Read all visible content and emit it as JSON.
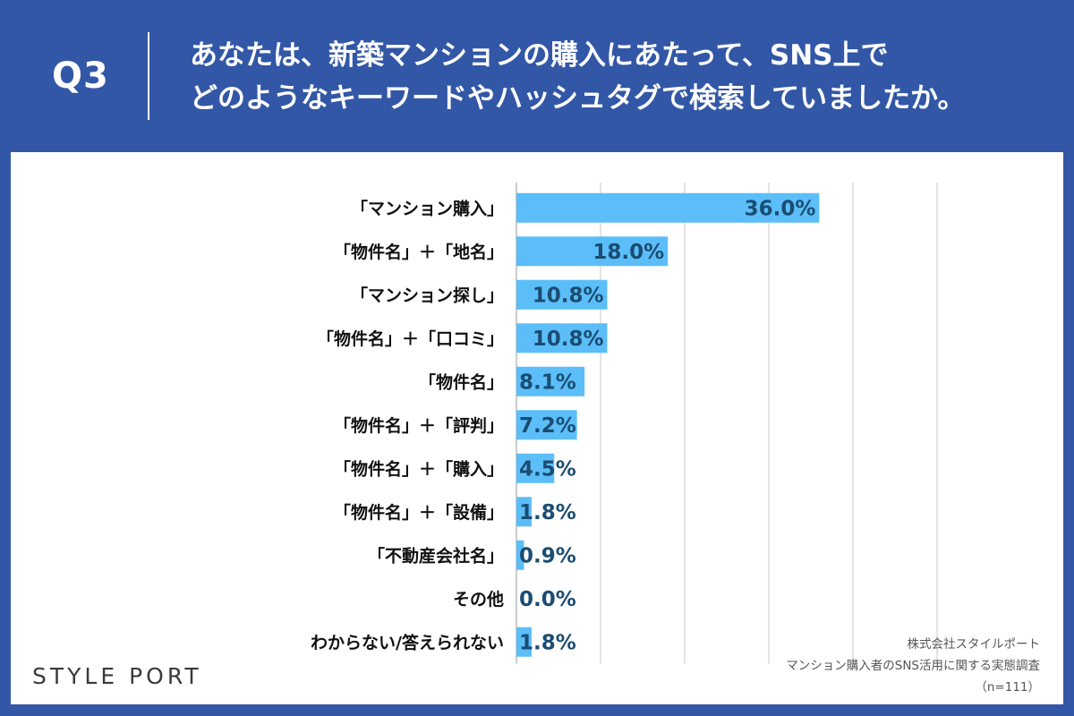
{
  "header": {
    "question_number": "Q3",
    "question_lines": [
      "あなたは、新築マンションの購入にあたって、SNS上で",
      "どのようなキーワードやハッシュタグで検索していましたか。"
    ]
  },
  "colors": {
    "header_bg": "#3257a6",
    "bar": "#5bbef8",
    "value_text": "#1b4c72",
    "grid": "#c8c8c8"
  },
  "chart_data": {
    "type": "bar",
    "orientation": "horizontal",
    "categories": [
      "「マンション購入」",
      "「物件名」＋「地名」",
      "「マンション探し」",
      "「物件名」＋「口コミ」",
      "「物件名」",
      "「物件名」＋「評判」",
      "「物件名」＋「購入」",
      "「物件名」＋「設備」",
      "「不動産会社名」",
      "その他",
      "わからない/答えられない"
    ],
    "values": [
      36.0,
      18.0,
      10.8,
      10.8,
      8.1,
      7.2,
      4.5,
      1.8,
      0.9,
      0.0,
      1.8
    ],
    "value_labels": [
      "36.0%",
      "18.0%",
      "10.8%",
      "10.8%",
      "8.1%",
      "7.2%",
      "4.5%",
      "1.8%",
      "0.9%",
      "0.0%",
      "1.8%"
    ],
    "xlim": [
      0,
      50
    ],
    "grid": true,
    "legend": "none"
  },
  "footer": {
    "logo": "STYLE PORT",
    "source_lines": [
      "株式会社スタイルポート",
      "マンション購入者のSNS活用に関する実態調査",
      "（n=111）"
    ]
  }
}
